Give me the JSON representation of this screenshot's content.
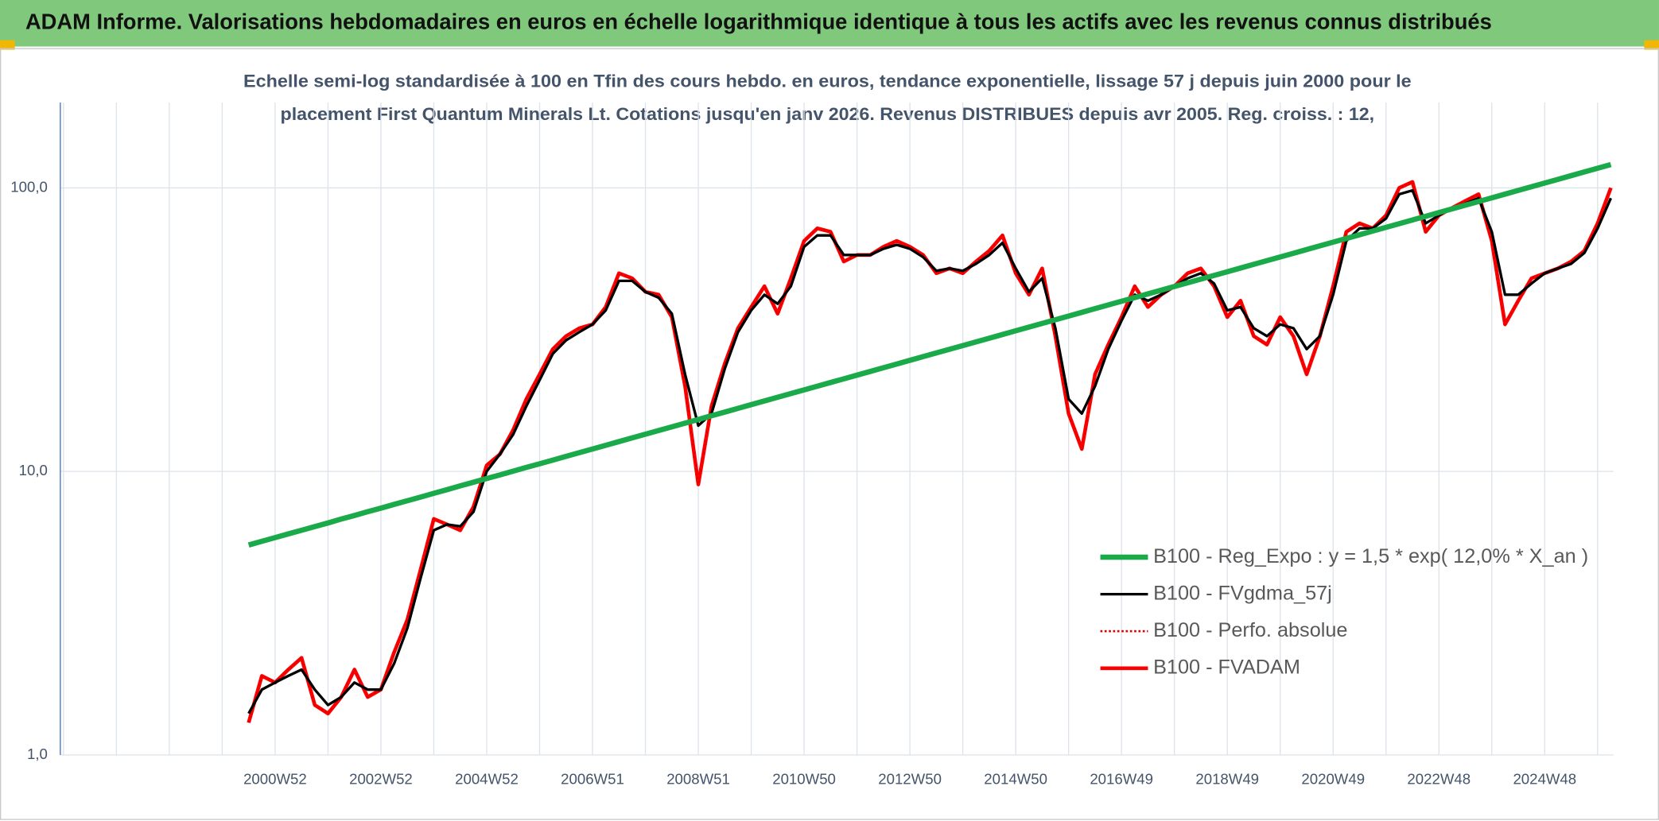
{
  "chart_data": {
    "type": "line",
    "title": "ADAM Informe. Valorisations hebdomadaires en euros en échelle logarithmique identique à tous les actifs avec les revenus connus distribués",
    "subtitle": [
      "Echelle semi-log standardisée à 100 en Tfin des cours hebdo. en euros, tendance exponentielle, lissage 57 j depuis juin 2000 pour le",
      "placement First Quantum Minerals Lt. Cotations jusqu'en janv 2026. Revenus DISTRIBUES depuis avr 2005. Reg. croiss. : 12,"
    ],
    "log_scale": true,
    "grid": true,
    "legend": "lower right",
    "ylim": [
      1,
      200
    ],
    "yticks": [
      {
        "value": 1,
        "label": "1,0"
      },
      {
        "value": 10,
        "label": "10,0"
      },
      {
        "value": 100,
        "label": "100,0"
      }
    ],
    "categories": [
      null,
      null,
      "2000W52",
      null,
      null,
      null,
      null,
      null,
      null,
      null,
      "2002W52",
      null,
      null,
      null,
      null,
      null,
      null,
      null,
      "2004W52",
      null,
      null,
      null,
      null,
      null,
      null,
      null,
      "2006W51",
      null,
      null,
      null,
      null,
      null,
      null,
      null,
      "2008W51",
      null,
      null,
      null,
      null,
      null,
      null,
      null,
      "2010W50",
      null,
      null,
      null,
      null,
      null,
      null,
      null,
      "2012W50",
      null,
      null,
      null,
      null,
      null,
      null,
      null,
      "2014W50",
      null,
      null,
      null,
      null,
      null,
      null,
      null,
      "2016W49",
      null,
      null,
      null,
      null,
      null,
      null,
      null,
      "2018W49",
      null,
      null,
      null,
      null,
      null,
      null,
      null,
      "2020W49",
      null,
      null,
      null,
      null,
      null,
      null,
      null,
      "2022W48",
      null,
      null,
      null,
      null,
      null,
      null,
      null,
      "2024W48",
      null,
      null,
      null,
      null,
      null
    ],
    "series": [
      {
        "name": "B100 - Reg_Expo : y = 1,5 * exp( 12,0% *  X_an )",
        "color": "#1aaa4a",
        "line_style": "solid",
        "values": [
          5.5,
          5.67,
          5.84,
          6.02,
          6.2,
          6.39,
          6.58,
          6.79,
          6.99,
          7.21,
          7.42,
          7.65,
          7.88,
          8.12,
          8.37,
          8.62,
          8.89,
          9.16,
          9.44,
          9.72,
          10.02,
          10.33,
          10.64,
          10.96,
          11.3,
          11.64,
          12.0,
          12.36,
          12.74,
          13.13,
          13.53,
          13.94,
          14.36,
          14.8,
          15.25,
          15.72,
          16.19,
          16.69,
          17.2,
          17.72,
          18.26,
          18.82,
          19.39,
          19.98,
          20.59,
          21.21,
          21.86,
          22.52,
          23.21,
          23.92,
          24.65,
          25.4,
          26.17,
          26.97,
          27.79,
          28.63,
          29.5,
          30.4,
          31.33,
          32.28,
          33.27,
          34.28,
          35.32,
          36.4,
          37.51,
          38.65,
          39.82,
          41.04,
          42.29,
          43.57,
          44.9,
          46.27,
          47.68,
          49.13,
          50.62,
          52.16,
          53.75,
          55.39,
          57.07,
          58.81,
          60.61,
          62.47,
          64.37,
          66.33,
          68.35,
          70.43,
          72.57,
          74.78,
          77.06,
          79.4,
          81.84,
          84.33,
          86.9,
          89.54,
          92.27,
          95.08,
          97.97,
          100.95,
          104.03,
          107.19,
          110.47,
          113.83,
          117.3,
          120.87
        ]
      },
      {
        "name": "B100 - FVgdma_57j",
        "color": "#000000",
        "line_style": "solid",
        "values": [
          1.4,
          1.7,
          1.8,
          1.9,
          2.0,
          1.7,
          1.5,
          1.6,
          1.8,
          1.7,
          1.7,
          2.1,
          2.8,
          4.2,
          6.2,
          6.5,
          6.4,
          7.2,
          10,
          11.5,
          13.5,
          17,
          21,
          26,
          29,
          31,
          33,
          37,
          47,
          47,
          43,
          41,
          36,
          22,
          14.5,
          16,
          23,
          31,
          37,
          42,
          39,
          45,
          62,
          68,
          68,
          58,
          58,
          58,
          61,
          63,
          61,
          57,
          51,
          52,
          51,
          54,
          58,
          64,
          52,
          43,
          48,
          32,
          18,
          16,
          20,
          27,
          34,
          42,
          40,
          42,
          45,
          48,
          50,
          46,
          37,
          38,
          32,
          30,
          33,
          32,
          27,
          30,
          42,
          65,
          72,
          72,
          78,
          95,
          98,
          75,
          80,
          85,
          88,
          92,
          70,
          42,
          42,
          46,
          50,
          52,
          54,
          59,
          72,
          92
        ]
      },
      {
        "name": "B100 - Perfo. absolue",
        "color": "#e00000",
        "line_style": "dotted",
        "values": [
          1.3,
          1.9,
          1.8,
          2.0,
          2.2,
          1.5,
          1.4,
          1.6,
          2.0,
          1.6,
          1.7,
          2.3,
          3.0,
          4.5,
          6.8,
          6.5,
          6.2,
          7.5,
          10.5,
          11.5,
          14,
          18,
          22,
          27,
          30,
          32,
          33,
          38,
          50,
          48,
          43,
          42,
          35,
          20,
          9,
          17,
          24,
          32,
          38,
          45,
          36,
          48,
          65,
          72,
          70,
          55,
          58,
          58,
          62,
          65,
          62,
          58,
          50,
          52,
          50,
          55,
          60,
          68,
          50,
          42,
          52,
          30,
          16,
          12,
          22,
          28,
          35,
          45,
          38,
          42,
          45,
          50,
          52,
          45,
          35,
          40,
          30,
          28,
          35,
          30,
          22,
          30,
          45,
          70,
          75,
          72,
          80,
          100,
          105,
          70,
          80,
          85,
          90,
          95,
          65,
          33,
          40,
          48,
          50,
          52,
          55,
          60,
          75,
          100
        ]
      },
      {
        "name": "B100 - FVADAM",
        "color": "#ff0000",
        "line_style": "solid",
        "values": [
          1.3,
          1.9,
          1.8,
          2.0,
          2.2,
          1.5,
          1.4,
          1.6,
          2.0,
          1.6,
          1.7,
          2.3,
          3.0,
          4.5,
          6.8,
          6.5,
          6.2,
          7.5,
          10.5,
          11.5,
          14,
          18,
          22,
          27,
          30,
          32,
          33,
          38,
          50,
          48,
          43,
          42,
          35,
          20,
          9,
          17,
          24,
          32,
          38,
          45,
          36,
          48,
          65,
          72,
          70,
          55,
          58,
          58,
          62,
          65,
          62,
          58,
          50,
          52,
          50,
          55,
          60,
          68,
          50,
          42,
          52,
          30,
          16,
          12,
          22,
          28,
          35,
          45,
          38,
          42,
          45,
          50,
          52,
          45,
          35,
          40,
          30,
          28,
          35,
          30,
          22,
          30,
          45,
          70,
          75,
          72,
          80,
          100,
          105,
          70,
          80,
          85,
          90,
          95,
          65,
          33,
          40,
          48,
          50,
          52,
          55,
          60,
          75,
          100
        ]
      }
    ]
  }
}
